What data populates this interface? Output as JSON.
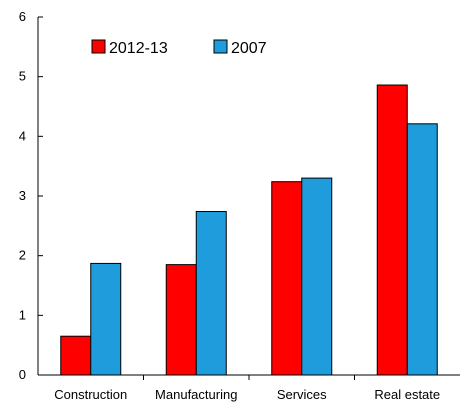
{
  "chart_data": {
    "type": "bar",
    "categories": [
      "Construction",
      "Manufacturing",
      "Services",
      "Real estate"
    ],
    "series": [
      {
        "name": "2012-13",
        "color": "#ff0000",
        "values": [
          0.65,
          1.85,
          3.24,
          4.86
        ]
      },
      {
        "name": "2007",
        "color": "#1f9cdc",
        "values": [
          1.87,
          2.74,
          3.3,
          4.21
        ]
      }
    ],
    "ylim": [
      0,
      6
    ],
    "yticks": [
      "0",
      "1",
      "2",
      "3",
      "4",
      "5",
      "6"
    ],
    "grid": false,
    "legend_position": "top-left"
  }
}
